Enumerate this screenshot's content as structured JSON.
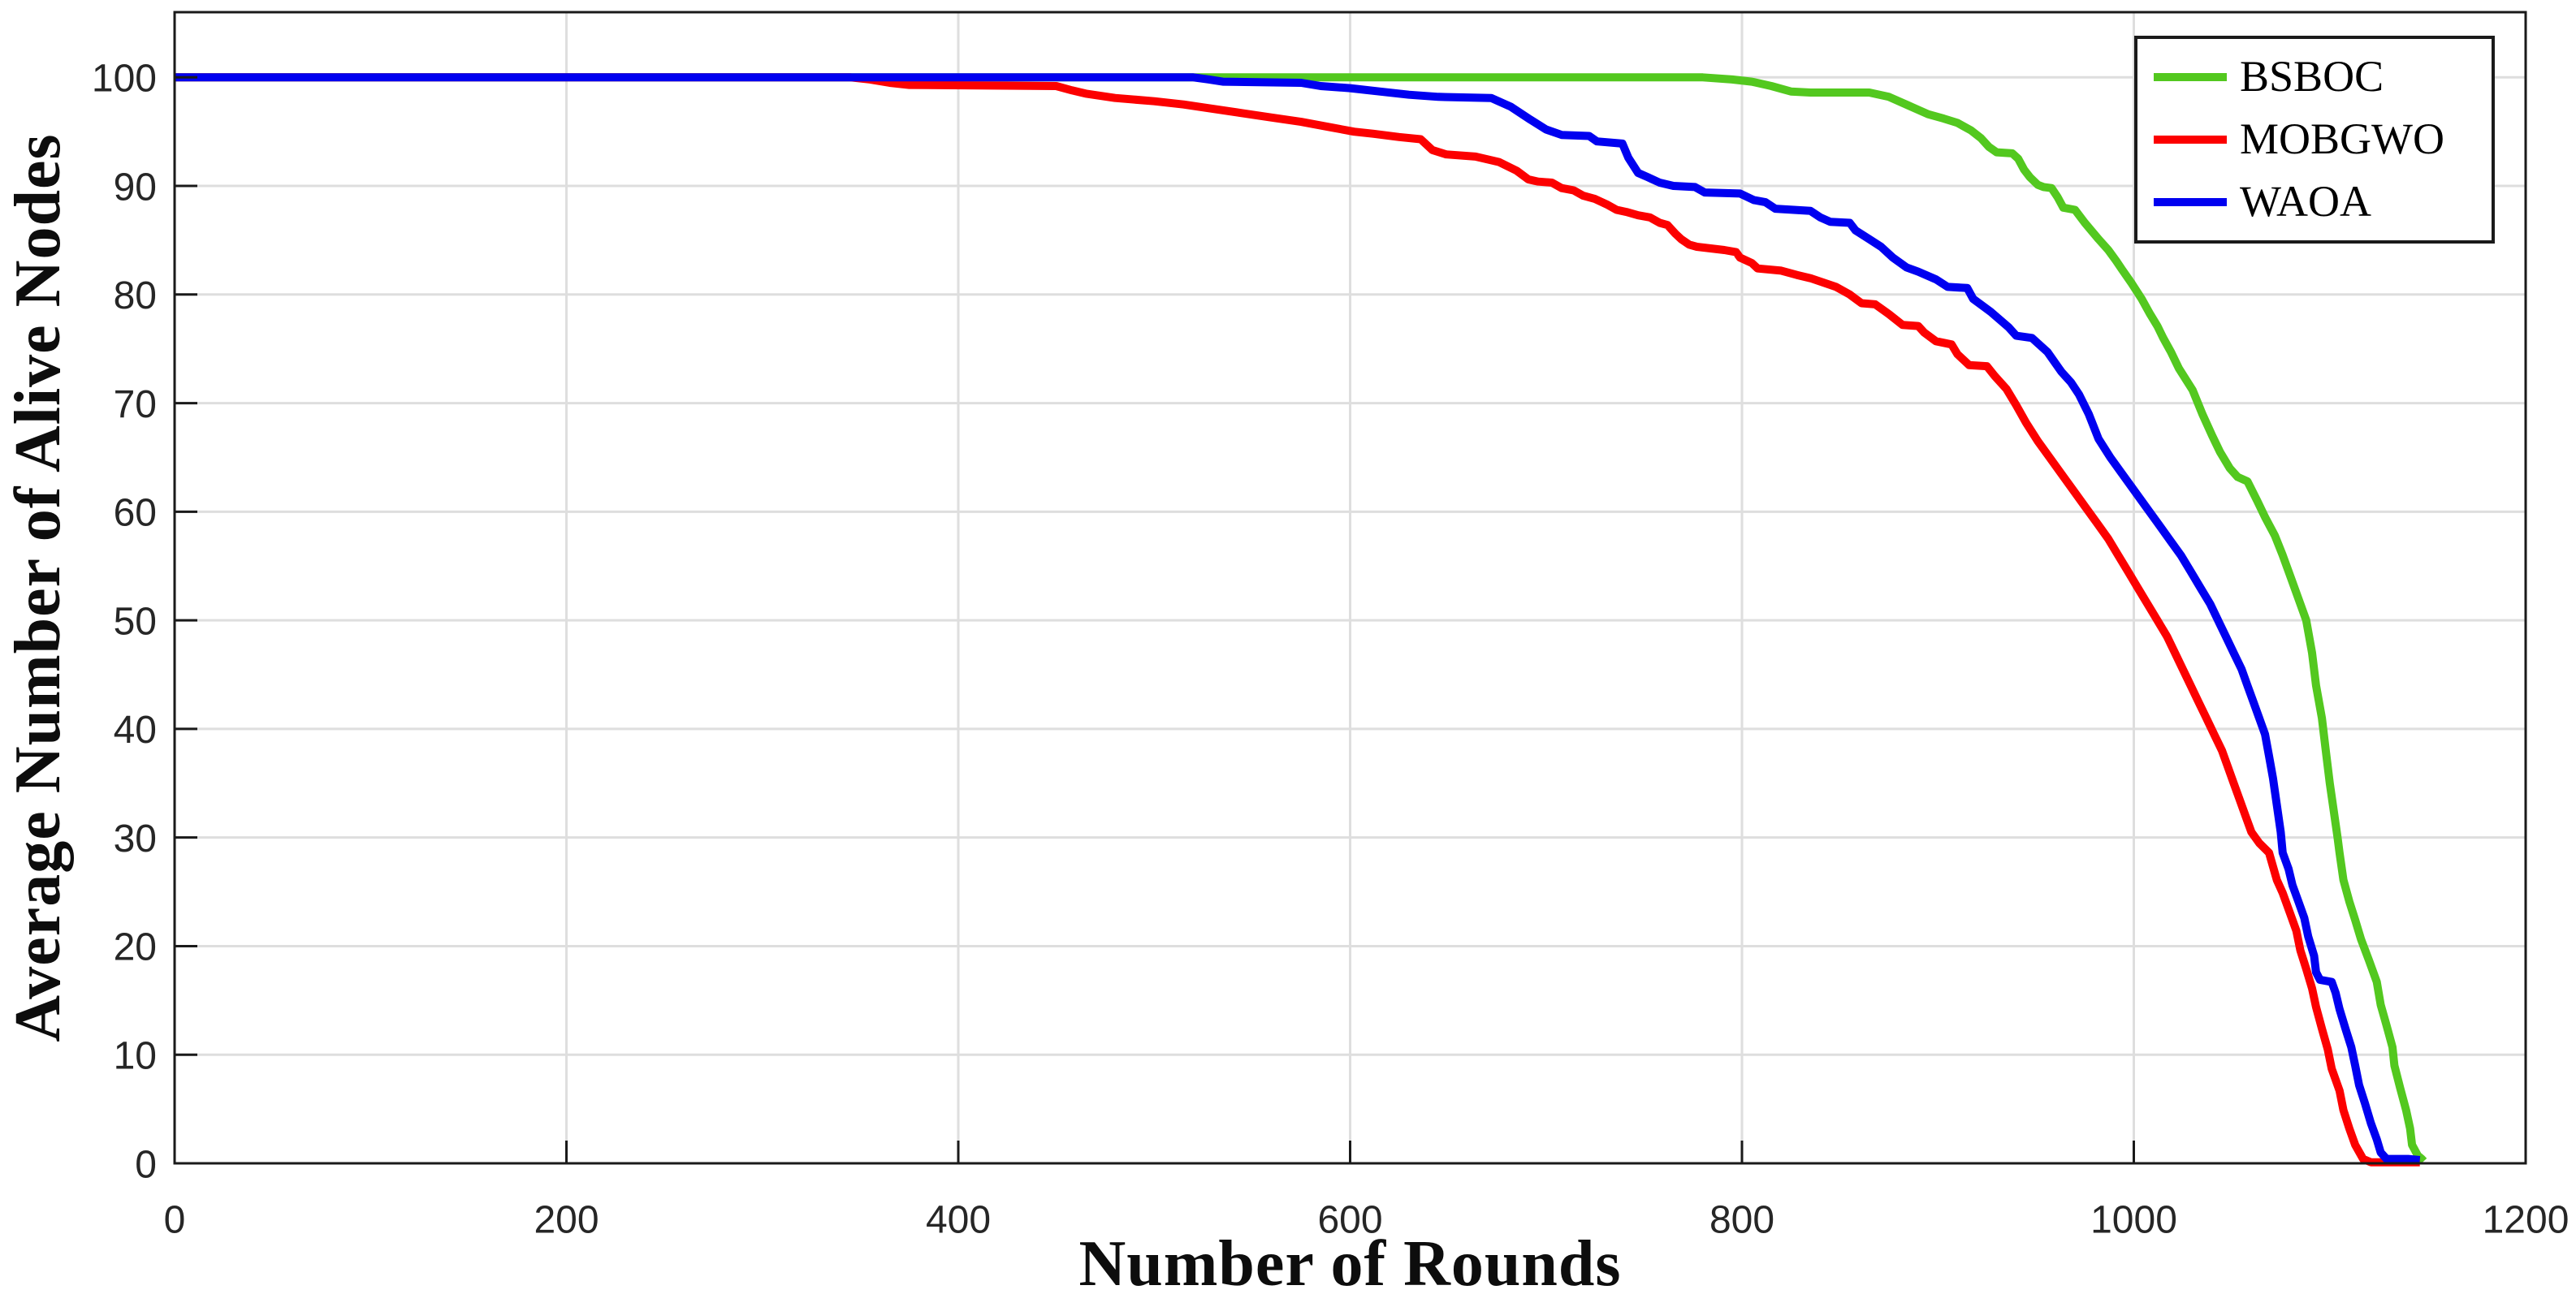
{
  "figure": {
    "background_color": "#ffffff",
    "axis_color": "#1a1a1a",
    "grid_color": "#dedede",
    "tick_label_color": "#262626"
  },
  "chart_data": {
    "type": "line",
    "title": "",
    "xlabel": "Number of Rounds",
    "ylabel": "Average Number of Alive Nodes",
    "xlim": [
      0,
      1200
    ],
    "ylim": [
      0,
      106
    ],
    "xticks": [
      0,
      200,
      400,
      600,
      800,
      1000,
      1200
    ],
    "yticks": [
      0,
      10,
      20,
      30,
      40,
      50,
      60,
      70,
      80,
      90,
      100
    ],
    "grid": true,
    "legend_position": "top-right",
    "legend_entries": [
      "BSBOC",
      "MOBGWO",
      "WAOA"
    ],
    "series": [
      {
        "name": "BSBOC",
        "color": "#53c81f",
        "points": [
          [
            0,
            100
          ],
          [
            150,
            100
          ],
          [
            300,
            100
          ],
          [
            450,
            100
          ],
          [
            600,
            100
          ],
          [
            700,
            100
          ],
          [
            780,
            100
          ],
          [
            795,
            99.8
          ],
          [
            805,
            99.6
          ],
          [
            815,
            99.2
          ],
          [
            825,
            98.7
          ],
          [
            835,
            98.6
          ],
          [
            865,
            98.6
          ],
          [
            875,
            98.2
          ],
          [
            885,
            97.4
          ],
          [
            895,
            96.6
          ],
          [
            903,
            96.2
          ],
          [
            910,
            95.8
          ],
          [
            917,
            95.1
          ],
          [
            922,
            94.4
          ],
          [
            926,
            93.6
          ],
          [
            930,
            93.1
          ],
          [
            938,
            93
          ],
          [
            941,
            92.5
          ],
          [
            944,
            91.5
          ],
          [
            947,
            90.8
          ],
          [
            951,
            90.1
          ],
          [
            954,
            89.9
          ],
          [
            958,
            89.8
          ],
          [
            961,
            89
          ],
          [
            964,
            88
          ],
          [
            970,
            87.8
          ],
          [
            975,
            86.6
          ],
          [
            982,
            85.1
          ],
          [
            987,
            84.1
          ],
          [
            991,
            83.1
          ],
          [
            994,
            82.3
          ],
          [
            999,
            81
          ],
          [
            1004,
            79.6
          ],
          [
            1008,
            78.3
          ],
          [
            1012,
            77.1
          ],
          [
            1015,
            76
          ],
          [
            1019,
            74.7
          ],
          [
            1023,
            73.2
          ],
          [
            1030,
            71.2
          ],
          [
            1035,
            69
          ],
          [
            1040,
            67
          ],
          [
            1044,
            65.5
          ],
          [
            1049,
            64
          ],
          [
            1053,
            63.2
          ],
          [
            1058,
            62.8
          ],
          [
            1063,
            61
          ],
          [
            1067,
            59.5
          ],
          [
            1072,
            57.8
          ],
          [
            1076,
            56
          ],
          [
            1080,
            54
          ],
          [
            1084,
            52
          ],
          [
            1088,
            50
          ],
          [
            1091,
            47
          ],
          [
            1093,
            44
          ],
          [
            1096,
            41
          ],
          [
            1098,
            38
          ],
          [
            1100,
            35
          ],
          [
            1102,
            32.5
          ],
          [
            1104,
            30
          ],
          [
            1105,
            28.6
          ],
          [
            1107,
            26.1
          ],
          [
            1110,
            24.1
          ],
          [
            1113,
            22.4
          ],
          [
            1116,
            20.6
          ],
          [
            1120,
            18.7
          ],
          [
            1124,
            16.7
          ],
          [
            1126,
            14.6
          ],
          [
            1129,
            12.7
          ],
          [
            1132,
            10.7
          ],
          [
            1133,
            9
          ],
          [
            1136,
            6.9
          ],
          [
            1139,
            4.9
          ],
          [
            1141,
            3.2
          ],
          [
            1142,
            1.7
          ],
          [
            1145,
            0.7
          ],
          [
            1147,
            0.4
          ],
          [
            1148,
            0.2
          ]
        ]
      },
      {
        "name": "MOBGWO",
        "color": "#fc0000",
        "points": [
          [
            0,
            100
          ],
          [
            150,
            100
          ],
          [
            300,
            100
          ],
          [
            345,
            100
          ],
          [
            355,
            99.8
          ],
          [
            365,
            99.5
          ],
          [
            375,
            99.3
          ],
          [
            450,
            99.2
          ],
          [
            458,
            98.8
          ],
          [
            465,
            98.5
          ],
          [
            480,
            98.1
          ],
          [
            500,
            97.8
          ],
          [
            515,
            97.5
          ],
          [
            530,
            97.1
          ],
          [
            545,
            96.7
          ],
          [
            560,
            96.3
          ],
          [
            575,
            95.9
          ],
          [
            590,
            95.4
          ],
          [
            602,
            95
          ],
          [
            612,
            94.8
          ],
          [
            625,
            94.5
          ],
          [
            636,
            94.3
          ],
          [
            642,
            93.3
          ],
          [
            649,
            92.9
          ],
          [
            664,
            92.7
          ],
          [
            676,
            92.2
          ],
          [
            685,
            91.4
          ],
          [
            691,
            90.6
          ],
          [
            696,
            90.4
          ],
          [
            703,
            90.3
          ],
          [
            708,
            89.8
          ],
          [
            714,
            89.6
          ],
          [
            719,
            89.1
          ],
          [
            725,
            88.8
          ],
          [
            731,
            88.3
          ],
          [
            736,
            87.8
          ],
          [
            741,
            87.6
          ],
          [
            747,
            87.3
          ],
          [
            753,
            87.1
          ],
          [
            758,
            86.6
          ],
          [
            762,
            86.4
          ],
          [
            766,
            85.6
          ],
          [
            769,
            85.1
          ],
          [
            773,
            84.6
          ],
          [
            777,
            84.4
          ],
          [
            791,
            84.1
          ],
          [
            797,
            83.9
          ],
          [
            799,
            83.4
          ],
          [
            805,
            82.9
          ],
          [
            808,
            82.4
          ],
          [
            820,
            82.2
          ],
          [
            828,
            81.8
          ],
          [
            835,
            81.5
          ],
          [
            848,
            80.7
          ],
          [
            855,
            80
          ],
          [
            861,
            79.2
          ],
          [
            868,
            79.1
          ],
          [
            875,
            78.2
          ],
          [
            882,
            77.2
          ],
          [
            890,
            77.1
          ],
          [
            893,
            76.5
          ],
          [
            899,
            75.7
          ],
          [
            907,
            75.4
          ],
          [
            910,
            74.5
          ],
          [
            916,
            73.5
          ],
          [
            925,
            73.4
          ],
          [
            929,
            72.5
          ],
          [
            935,
            71.3
          ],
          [
            940,
            69.8
          ],
          [
            945,
            68.2
          ],
          [
            951,
            66.5
          ],
          [
            957,
            65
          ],
          [
            963,
            63.5
          ],
          [
            969,
            62
          ],
          [
            975,
            60.5
          ],
          [
            981,
            59
          ],
          [
            987,
            57.5
          ],
          [
            992,
            56
          ],
          [
            997,
            54.5
          ],
          [
            1002,
            53
          ],
          [
            1007,
            51.5
          ],
          [
            1012,
            50
          ],
          [
            1017,
            48.5
          ],
          [
            1021,
            47
          ],
          [
            1025,
            45.5
          ],
          [
            1029,
            44
          ],
          [
            1033,
            42.5
          ],
          [
            1037,
            41
          ],
          [
            1041,
            39.5
          ],
          [
            1045,
            38
          ],
          [
            1048,
            36.5
          ],
          [
            1051,
            35
          ],
          [
            1054,
            33.5
          ],
          [
            1057,
            32
          ],
          [
            1060,
            30.5
          ],
          [
            1064,
            29.5
          ],
          [
            1069,
            28.6
          ],
          [
            1073,
            26.1
          ],
          [
            1076,
            24.9
          ],
          [
            1080,
            22.9
          ],
          [
            1083,
            21.4
          ],
          [
            1085,
            19.6
          ],
          [
            1088,
            17.9
          ],
          [
            1091,
            16.1
          ],
          [
            1093,
            14.4
          ],
          [
            1096,
            12.4
          ],
          [
            1099,
            10.5
          ],
          [
            1101,
            8.7
          ],
          [
            1105,
            6.7
          ],
          [
            1107,
            4.9
          ],
          [
            1110,
            3.2
          ],
          [
            1113,
            1.7
          ],
          [
            1117,
            0.4
          ],
          [
            1121,
            0.1
          ],
          [
            1135,
            0.1
          ],
          [
            1146,
            0.1
          ]
        ]
      },
      {
        "name": "WAOA",
        "color": "#0000f0",
        "points": [
          [
            0,
            100
          ],
          [
            150,
            100
          ],
          [
            300,
            100
          ],
          [
            450,
            100
          ],
          [
            520,
            100
          ],
          [
            528,
            99.8
          ],
          [
            535,
            99.6
          ],
          [
            575,
            99.5
          ],
          [
            585,
            99.2
          ],
          [
            600,
            99
          ],
          [
            615,
            98.7
          ],
          [
            630,
            98.4
          ],
          [
            645,
            98.2
          ],
          [
            672,
            98.1
          ],
          [
            682,
            97.3
          ],
          [
            692,
            96.1
          ],
          [
            700,
            95.2
          ],
          [
            708,
            94.7
          ],
          [
            722,
            94.6
          ],
          [
            726,
            94.1
          ],
          [
            739,
            93.9
          ],
          [
            742,
            92.6
          ],
          [
            747,
            91.2
          ],
          [
            752,
            90.8
          ],
          [
            758,
            90.3
          ],
          [
            765,
            90
          ],
          [
            776,
            89.9
          ],
          [
            781,
            89.4
          ],
          [
            799,
            89.3
          ],
          [
            806,
            88.7
          ],
          [
            812,
            88.5
          ],
          [
            817,
            87.9
          ],
          [
            835,
            87.7
          ],
          [
            840,
            87.1
          ],
          [
            845,
            86.7
          ],
          [
            855,
            86.6
          ],
          [
            858,
            85.9
          ],
          [
            865,
            85.1
          ],
          [
            871,
            84.4
          ],
          [
            877,
            83.4
          ],
          [
            884,
            82.5
          ],
          [
            890,
            82.1
          ],
          [
            899,
            81.4
          ],
          [
            905,
            80.7
          ],
          [
            915,
            80.6
          ],
          [
            918,
            79.6
          ],
          [
            927,
            78.4
          ],
          [
            936,
            77
          ],
          [
            940,
            76.2
          ],
          [
            948,
            76
          ],
          [
            956,
            74.7
          ],
          [
            963,
            72.9
          ],
          [
            968,
            71.9
          ],
          [
            972,
            70.8
          ],
          [
            977,
            69
          ],
          [
            982,
            66.7
          ],
          [
            988,
            65
          ],
          [
            994,
            63.5
          ],
          [
            1000,
            62
          ],
          [
            1006,
            60.5
          ],
          [
            1012,
            59
          ],
          [
            1018,
            57.5
          ],
          [
            1024,
            56
          ],
          [
            1029,
            54.5
          ],
          [
            1034,
            53
          ],
          [
            1039,
            51.5
          ],
          [
            1043,
            50
          ],
          [
            1047,
            48.5
          ],
          [
            1051,
            47
          ],
          [
            1055,
            45.5
          ],
          [
            1058,
            44
          ],
          [
            1061,
            42.5
          ],
          [
            1064,
            41
          ],
          [
            1067,
            39.5
          ],
          [
            1069,
            37.5
          ],
          [
            1071,
            35.5
          ],
          [
            1073,
            33
          ],
          [
            1075,
            30.5
          ],
          [
            1076,
            28.6
          ],
          [
            1079,
            27.1
          ],
          [
            1081,
            25.6
          ],
          [
            1084,
            24.1
          ],
          [
            1087,
            22.6
          ],
          [
            1089,
            20.9
          ],
          [
            1092,
            19.1
          ],
          [
            1093,
            17.6
          ],
          [
            1095,
            16.9
          ],
          [
            1101,
            16.7
          ],
          [
            1103,
            15.7
          ],
          [
            1105,
            14.2
          ],
          [
            1108,
            12.4
          ],
          [
            1111,
            10.7
          ],
          [
            1113,
            9
          ],
          [
            1115,
            7.2
          ],
          [
            1118,
            5.5
          ],
          [
            1121,
            3.7
          ],
          [
            1124,
            2.2
          ],
          [
            1126,
            1
          ],
          [
            1129,
            0.4
          ],
          [
            1140,
            0.4
          ],
          [
            1146,
            0.3
          ]
        ]
      }
    ]
  }
}
